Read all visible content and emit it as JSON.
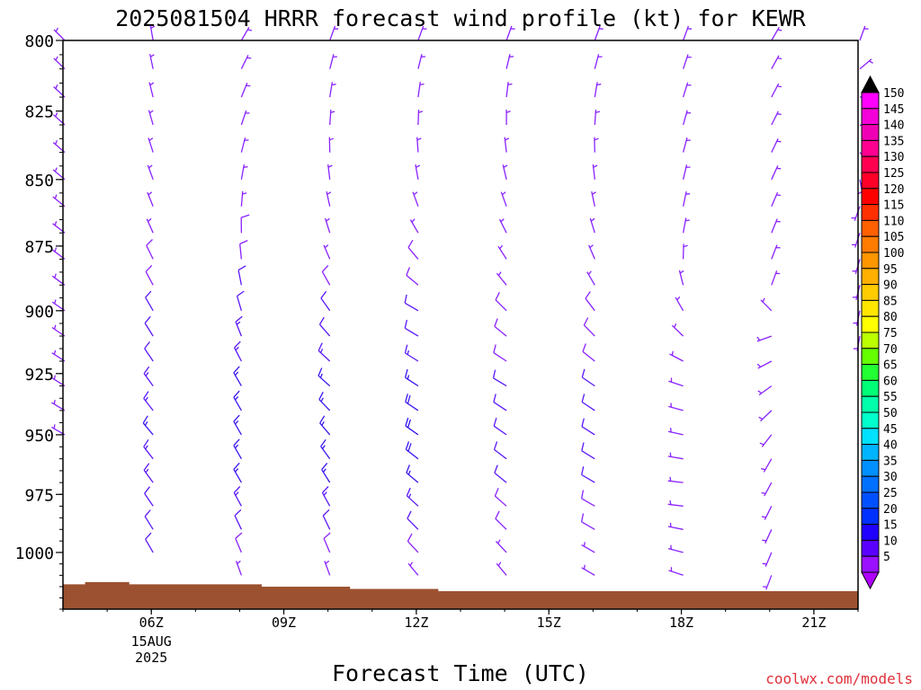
{
  "chart_data": {
    "type": "wind-barb-time-height",
    "title": "2025081504 HRRR forecast wind profile (kt) for KEWR",
    "xlabel": "Forecast Time (UTC)",
    "ylabel": "",
    "y_scale": "log-pressure",
    "y_range": [
      800,
      1025
    ],
    "y_unit": "hPa",
    "y_ticks": [
      "800",
      "825",
      "850",
      "875",
      "900",
      "925",
      "950",
      "975",
      "1000"
    ],
    "x_range": [
      4,
      22
    ],
    "x_unit": "hour UTC, 15 Aug 2025",
    "x_ticks": [
      {
        "hour": 6,
        "label": "06Z",
        "sub1": "15AUG",
        "sub2": "2025"
      },
      {
        "hour": 9,
        "label": "09Z",
        "sub1": "",
        "sub2": ""
      },
      {
        "hour": 12,
        "label": "12Z",
        "sub1": "",
        "sub2": ""
      },
      {
        "hour": 15,
        "label": "15Z",
        "sub1": "",
        "sub2": ""
      },
      {
        "hour": 18,
        "label": "18Z",
        "sub1": "",
        "sub2": ""
      },
      {
        "hour": 21,
        "label": "21Z",
        "sub1": "",
        "sub2": ""
      }
    ],
    "grid": false,
    "surface_color": "#9c5230",
    "surface_pressure": [
      {
        "hour": 4.0,
        "p": 1014
      },
      {
        "hour": 4.5,
        "p": 1013
      },
      {
        "hour": 5.5,
        "p": 1014
      },
      {
        "hour": 7.5,
        "p": 1014
      },
      {
        "hour": 8.5,
        "p": 1015
      },
      {
        "hour": 10.5,
        "p": 1016
      },
      {
        "hour": 12.5,
        "p": 1017
      },
      {
        "hour": 22.0,
        "p": 1017
      }
    ],
    "barb_columns": [
      {
        "hour": 4,
        "top_p": 800,
        "bottom_p": 955,
        "profile": [
          {
            "p": 800,
            "dir": 315,
            "spd": 5
          },
          {
            "p": 950,
            "dir": 300,
            "spd": 5
          }
        ]
      },
      {
        "hour": 6,
        "top_p": 800,
        "bottom_p": 1005,
        "profile": [
          {
            "p": 800,
            "dir": 350,
            "spd": 5
          },
          {
            "p": 850,
            "dir": 340,
            "spd": 5
          },
          {
            "p": 950,
            "dir": 320,
            "spd": 15
          },
          {
            "p": 1000,
            "dir": 330,
            "spd": 10
          }
        ]
      },
      {
        "hour": 8,
        "top_p": 800,
        "bottom_p": 1010,
        "profile": [
          {
            "p": 800,
            "dir": 30,
            "spd": 5
          },
          {
            "p": 850,
            "dir": 10,
            "spd": 5
          },
          {
            "p": 925,
            "dir": 330,
            "spd": 15
          },
          {
            "p": 975,
            "dir": 330,
            "spd": 15
          },
          {
            "p": 1010,
            "dir": 340,
            "spd": 5
          }
        ]
      },
      {
        "hour": 10,
        "top_p": 800,
        "bottom_p": 1010,
        "profile": [
          {
            "p": 800,
            "dir": 20,
            "spd": 5
          },
          {
            "p": 875,
            "dir": 340,
            "spd": 5
          },
          {
            "p": 925,
            "dir": 310,
            "spd": 15
          },
          {
            "p": 975,
            "dir": 330,
            "spd": 15
          },
          {
            "p": 1010,
            "dir": 340,
            "spd": 5
          }
        ]
      },
      {
        "hour": 12,
        "top_p": 800,
        "bottom_p": 1010,
        "profile": [
          {
            "p": 800,
            "dir": 20,
            "spd": 5
          },
          {
            "p": 850,
            "dir": 350,
            "spd": 5
          },
          {
            "p": 900,
            "dir": 300,
            "spd": 10
          },
          {
            "p": 950,
            "dir": 305,
            "spd": 20
          },
          {
            "p": 1010,
            "dir": 320,
            "spd": 5
          }
        ]
      },
      {
        "hour": 14,
        "top_p": 800,
        "bottom_p": 1010,
        "profile": [
          {
            "p": 800,
            "dir": 20,
            "spd": 5
          },
          {
            "p": 875,
            "dir": 330,
            "spd": 5
          },
          {
            "p": 925,
            "dir": 300,
            "spd": 10
          },
          {
            "p": 975,
            "dir": 310,
            "spd": 10
          },
          {
            "p": 1010,
            "dir": 320,
            "spd": 5
          }
        ]
      },
      {
        "hour": 16,
        "top_p": 800,
        "bottom_p": 1010,
        "profile": [
          {
            "p": 800,
            "dir": 20,
            "spd": 5
          },
          {
            "p": 875,
            "dir": 340,
            "spd": 5
          },
          {
            "p": 925,
            "dir": 305,
            "spd": 10
          },
          {
            "p": 975,
            "dir": 300,
            "spd": 10
          },
          {
            "p": 1010,
            "dir": 300,
            "spd": 5
          }
        ]
      },
      {
        "hour": 18,
        "top_p": 800,
        "bottom_p": 1013,
        "profile": [
          {
            "p": 800,
            "dir": 20,
            "spd": 5
          },
          {
            "p": 875,
            "dir": 10,
            "spd": 5
          },
          {
            "p": 925,
            "dir": 290,
            "spd": 5
          },
          {
            "p": 975,
            "dir": 275,
            "spd": 5
          },
          {
            "p": 1013,
            "dir": 290,
            "spd": 5
          }
        ]
      },
      {
        "hour": 20,
        "top_p": 800,
        "bottom_p": 1015,
        "profile": [
          {
            "p": 800,
            "dir": 30,
            "spd": 5
          },
          {
            "p": 890,
            "dir": 20,
            "spd": 5
          },
          {
            "p": 910,
            "dir": 250,
            "spd": 5
          },
          {
            "p": 960,
            "dir": 210,
            "spd": 5
          },
          {
            "p": 1015,
            "dir": 200,
            "spd": 5
          }
        ]
      },
      {
        "hour": 22,
        "top_p": 800,
        "bottom_p": 910,
        "profile": [
          {
            "p": 800,
            "dir": 20,
            "spd": 5
          },
          {
            "p": 860,
            "dir": 200,
            "spd": 5
          },
          {
            "p": 910,
            "dir": 190,
            "spd": 5
          }
        ]
      }
    ],
    "barb_levels_every": 10,
    "colorbar": {
      "labels": [
        "150",
        "145",
        "140",
        "135",
        "130",
        "125",
        "120",
        "115",
        "110",
        "105",
        "100",
        "95",
        "90",
        "85",
        "80",
        "75",
        "70",
        "65",
        "60",
        "55",
        "50",
        "45",
        "40",
        "35",
        "30",
        "25",
        "20",
        "15",
        "10",
        "5"
      ],
      "colors": [
        "#ff00ff",
        "#f400d8",
        "#f000b4",
        "#ff0090",
        "#ff0050",
        "#ff0028",
        "#ff0000",
        "#ff3000",
        "#ff6000",
        "#ff7c00",
        "#ff9600",
        "#ffb000",
        "#ffcc00",
        "#ffe600",
        "#ffff00",
        "#bbff00",
        "#66ff00",
        "#22ff33",
        "#00ff77",
        "#00ffaa",
        "#00ffcc",
        "#00e0ff",
        "#00b4ff",
        "#0090ff",
        "#0070ff",
        "#0050ff",
        "#0030ff",
        "#2000ff",
        "#5a00ff",
        "#9a10ff"
      ],
      "top_cap_color": "#000000",
      "bottom_cap_color": "#b000ff"
    }
  },
  "watermark": "coolwx.com/models"
}
